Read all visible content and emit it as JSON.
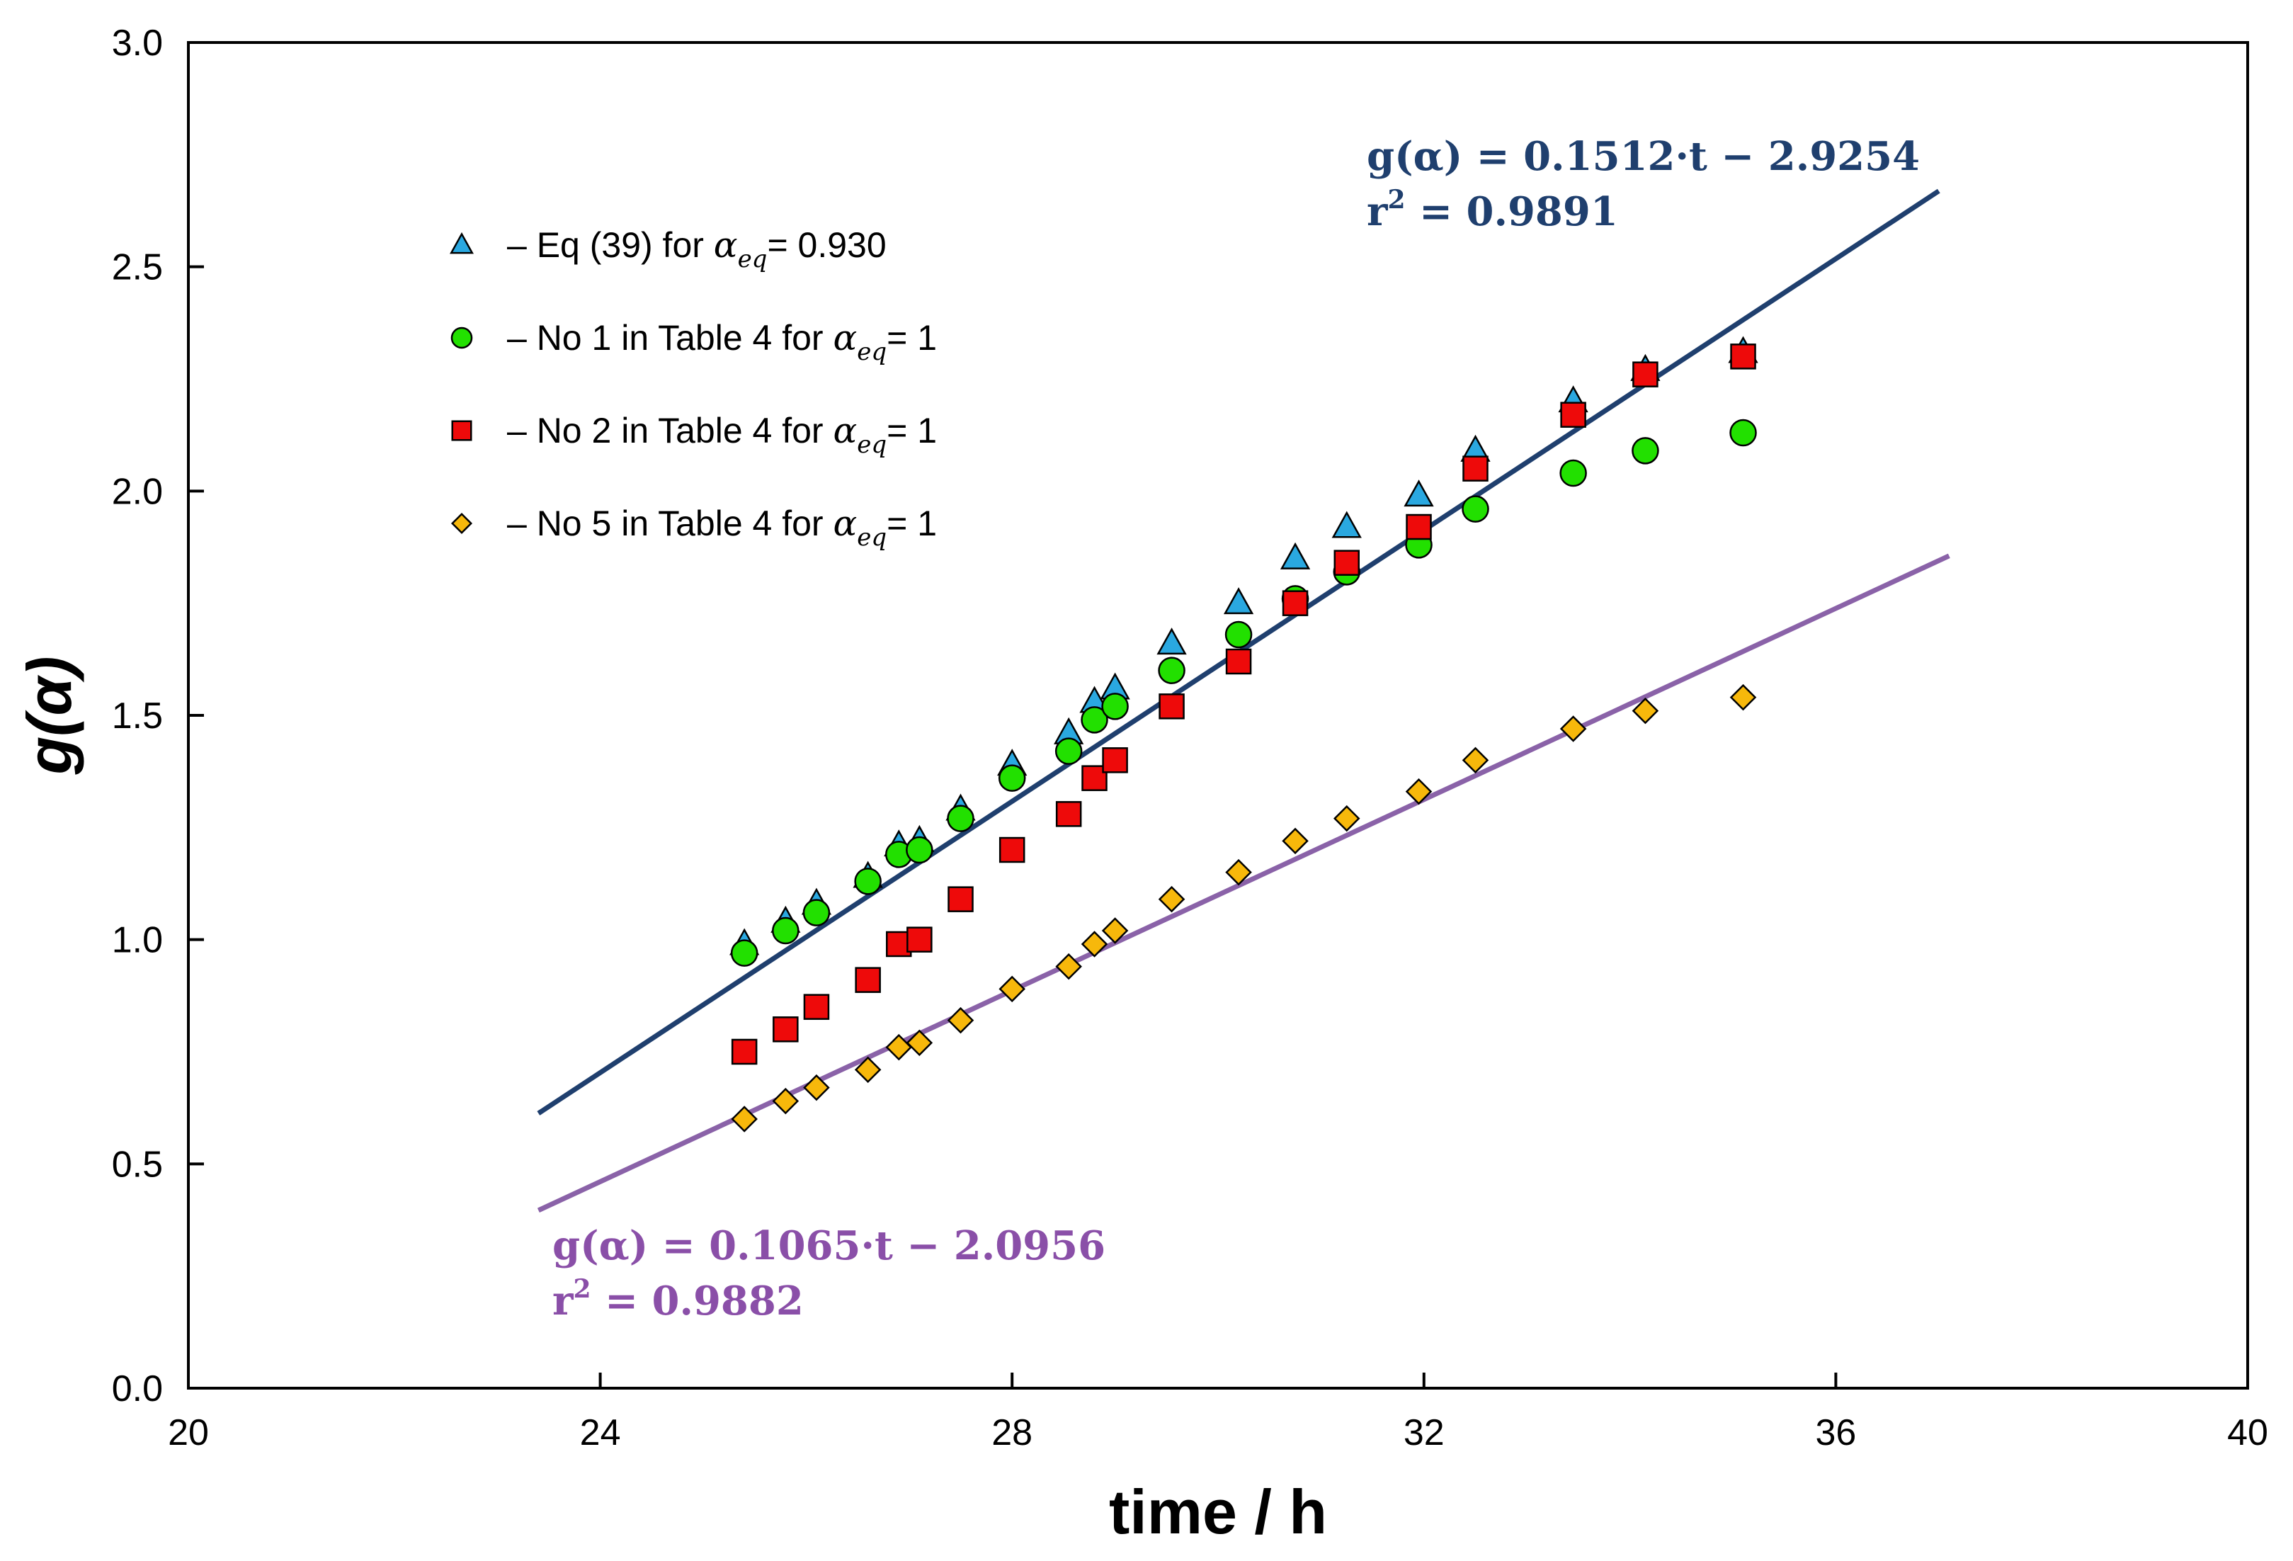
{
  "chart_data": {
    "type": "scatter",
    "xlabel": "time / h",
    "ylabel": "g(α)",
    "xlim": [
      20,
      40
    ],
    "ylim": [
      0.0,
      3.0
    ],
    "x_ticks": [
      "20",
      "24",
      "28",
      "32",
      "36",
      "40"
    ],
    "y_ticks": [
      "0.0",
      "0.5",
      "1.0",
      "1.5",
      "2.0",
      "2.5",
      "3.0"
    ],
    "legend_position": "top-left",
    "series": [
      {
        "name": "eq39",
        "marker": "triangle",
        "color": "#2aa8e0",
        "legend": {
          "prefix": "– Eq (39) for ",
          "alpha": "α",
          "sub": "eq",
          "suffix": "= 0.930"
        },
        "x": [
          25.4,
          25.8,
          26.1,
          26.6,
          26.9,
          27.1,
          27.5,
          28.0,
          28.55,
          28.8,
          29.0,
          29.55,
          30.2,
          30.75,
          31.25,
          31.95,
          32.5,
          33.45,
          34.15,
          35.1
        ],
        "y": [
          0.99,
          1.04,
          1.08,
          1.14,
          1.21,
          1.22,
          1.29,
          1.39,
          1.46,
          1.53,
          1.56,
          1.66,
          1.75,
          1.85,
          1.92,
          1.99,
          2.09,
          2.2,
          2.27,
          2.31
        ]
      },
      {
        "name": "no1",
        "marker": "circle",
        "color": "#22e000",
        "legend": {
          "prefix": "– No 1 in Table 4  for ",
          "alpha": "α",
          "sub": "eq",
          "suffix": "= 1"
        },
        "x": [
          25.4,
          25.8,
          26.1,
          26.6,
          26.9,
          27.1,
          27.5,
          28.0,
          28.55,
          28.8,
          29.0,
          29.55,
          30.2,
          30.75,
          31.25,
          31.95,
          32.5,
          33.45,
          34.15,
          35.1
        ],
        "y": [
          0.97,
          1.02,
          1.06,
          1.13,
          1.19,
          1.2,
          1.27,
          1.36,
          1.42,
          1.49,
          1.52,
          1.6,
          1.68,
          1.76,
          1.82,
          1.88,
          1.96,
          2.04,
          2.09,
          2.13
        ]
      },
      {
        "name": "no2",
        "marker": "square",
        "color": "#ee0a0a",
        "legend": {
          "prefix": "– No 2 in Table 4  for ",
          "alpha": "α",
          "sub": "eq",
          "suffix": "= 1"
        },
        "x": [
          25.4,
          25.8,
          26.1,
          26.6,
          26.9,
          27.1,
          27.5,
          28.0,
          28.55,
          28.8,
          29.0,
          29.55,
          30.2,
          30.75,
          31.25,
          31.95,
          32.5,
          33.45,
          34.15,
          35.1
        ],
        "y": [
          0.75,
          0.8,
          0.85,
          0.91,
          0.99,
          1.0,
          1.09,
          1.2,
          1.28,
          1.36,
          1.4,
          1.52,
          1.62,
          1.75,
          1.84,
          1.92,
          2.05,
          2.17,
          2.26,
          2.3
        ]
      },
      {
        "name": "no5",
        "marker": "diamond",
        "color": "#f7b80b",
        "legend": {
          "prefix": "– No 5 in Table 4  for ",
          "alpha": "α",
          "sub": "eq",
          "suffix": "= 1"
        },
        "x": [
          25.4,
          25.8,
          26.1,
          26.6,
          26.9,
          27.1,
          27.5,
          28.0,
          28.55,
          28.8,
          29.0,
          29.55,
          30.2,
          30.75,
          31.25,
          31.95,
          32.5,
          33.45,
          34.15,
          35.1
        ],
        "y": [
          0.6,
          0.64,
          0.67,
          0.71,
          0.76,
          0.77,
          0.82,
          0.89,
          0.94,
          0.99,
          1.02,
          1.09,
          1.15,
          1.22,
          1.27,
          1.33,
          1.4,
          1.47,
          1.51,
          1.54
        ]
      }
    ],
    "fit_lines": [
      {
        "name": "fit-upper",
        "color": "#1f3f6e",
        "slope": 0.1512,
        "intercept": -2.9254,
        "x_range": [
          23.4,
          37.0
        ],
        "eq_text": "g(α) =  0.1512·t  − 2.9254",
        "r2_label": "r",
        "r2_sup": "2",
        "r2_value": " = 0.9891"
      },
      {
        "name": "fit-lower",
        "color": "#8a62a8",
        "slope": 0.1065,
        "intercept": -2.0956,
        "x_range": [
          23.4,
          37.1
        ],
        "eq_text": "g(α) =  0.1065·t  − 2.0956",
        "r2_label": "r",
        "r2_sup": "2",
        "r2_value": " = 0.9882"
      }
    ]
  }
}
